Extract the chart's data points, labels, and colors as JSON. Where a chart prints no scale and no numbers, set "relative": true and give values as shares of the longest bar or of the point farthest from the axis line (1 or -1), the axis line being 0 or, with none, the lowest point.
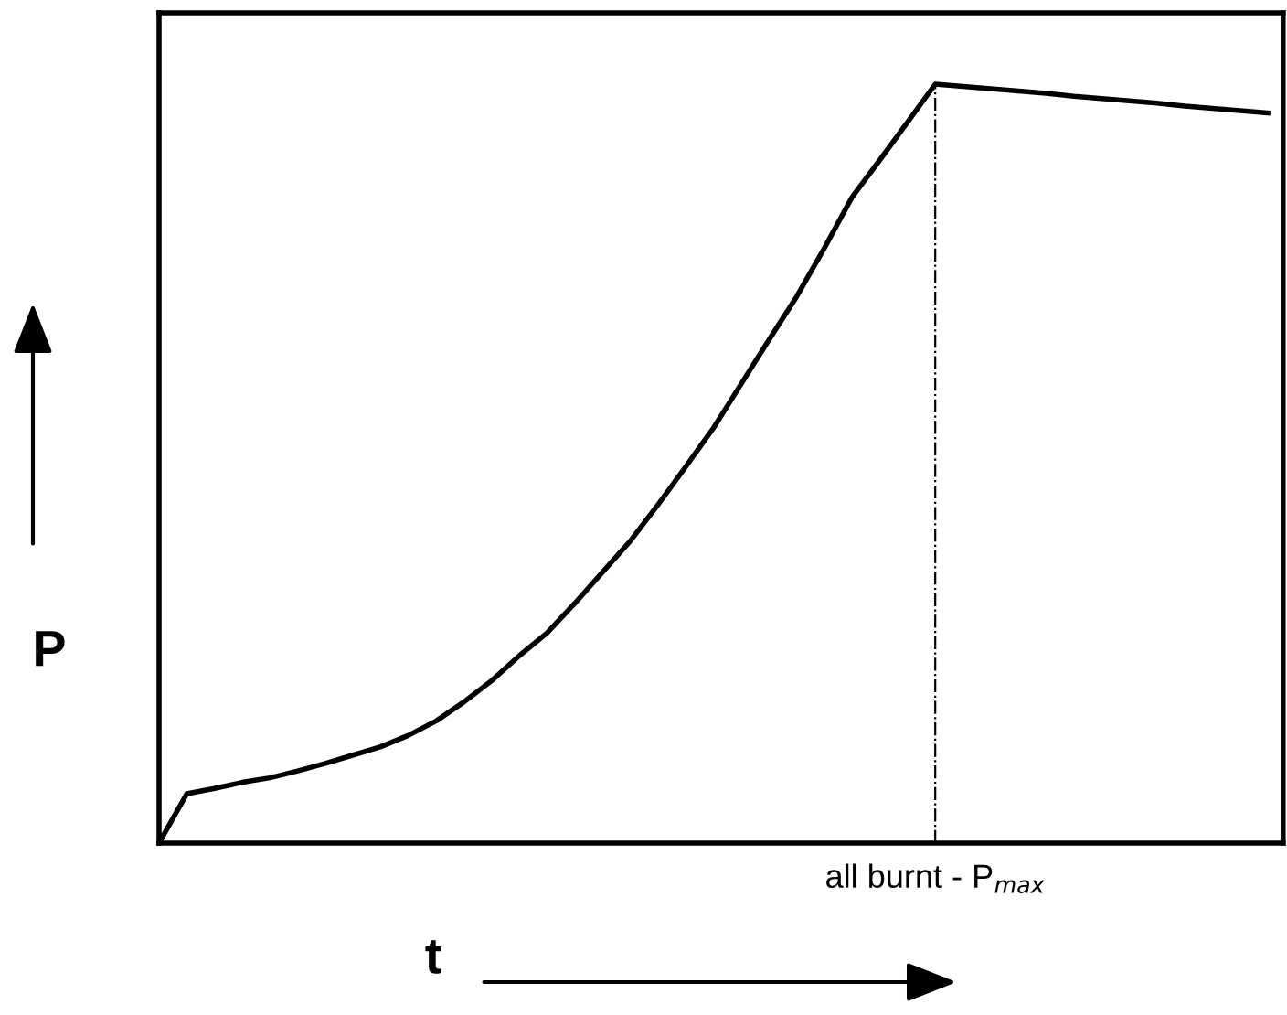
{
  "chart_data": {
    "type": "line",
    "relative": true,
    "xlabel": "t",
    "ylabel": "P",
    "color": "#000000",
    "categories": [
      null,
      null,
      null,
      null,
      null,
      null,
      null,
      null,
      null,
      null,
      null,
      null,
      null,
      null,
      null,
      null,
      null,
      null,
      null,
      null,
      null,
      null,
      null,
      null,
      null,
      null,
      null,
      null,
      null,
      null,
      null,
      null,
      null,
      null,
      null,
      null,
      null,
      null,
      null,
      null,
      null
    ],
    "values": [
      0,
      0.065,
      0.072,
      0.08,
      0.086,
      0.095,
      0.105,
      0.116,
      0.127,
      0.142,
      0.161,
      0.186,
      0.214,
      0.247,
      0.277,
      0.316,
      0.357,
      0.398,
      0.446,
      0.496,
      0.547,
      0.605,
      0.663,
      0.72,
      0.784,
      0.851,
      0.9,
      0.95,
      1.0,
      0.997,
      0.994,
      0.991,
      0.988,
      0.984,
      0.981,
      0.978,
      0.975,
      0.971,
      0.968,
      0.965,
      0.962
    ],
    "annotations": [
      "all burnt - P$_{max}$"
    ],
    "grid": false,
    "legend": false,
    "marker": "none",
    "line_style": "solid"
  }
}
